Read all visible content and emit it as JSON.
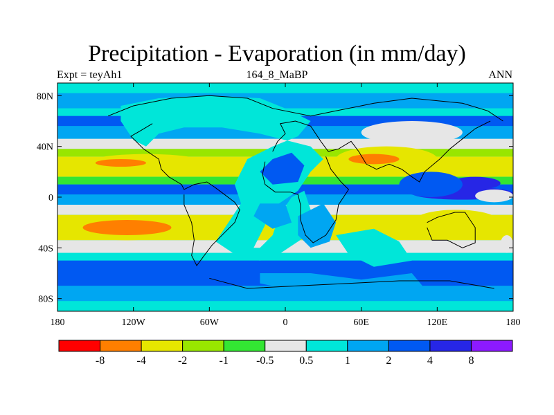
{
  "title": "Precipitation - Evaporation (in mm/day)",
  "subtitle_left": "Expt = teyAh1",
  "subtitle_center": "164_8_MaBP",
  "subtitle_right": "ANN",
  "map": {
    "lon_range": [
      -180,
      180
    ],
    "lat_range": [
      -90,
      90
    ],
    "lat_ticks": [
      {
        "value": 80,
        "label": "80N"
      },
      {
        "value": 40,
        "label": "40N"
      },
      {
        "value": 0,
        "label": "0"
      },
      {
        "value": -40,
        "label": "40S"
      },
      {
        "value": -80,
        "label": "80S"
      }
    ],
    "lon_ticks": [
      {
        "value": -180,
        "label": "180"
      },
      {
        "value": -120,
        "label": "120W"
      },
      {
        "value": -60,
        "label": "60W"
      },
      {
        "value": 0,
        "label": "0"
      },
      {
        "value": 60,
        "label": "60E"
      },
      {
        "value": 120,
        "label": "120E"
      },
      {
        "value": 180,
        "label": "180"
      }
    ],
    "bands": [
      {
        "from": 90,
        "to": 82,
        "cls": 6
      },
      {
        "from": 82,
        "to": 70,
        "cls": 7
      },
      {
        "from": 70,
        "to": 64,
        "cls": 6
      },
      {
        "from": 64,
        "to": 56,
        "cls": 8
      },
      {
        "from": 56,
        "to": 46,
        "cls": 7
      },
      {
        "from": 46,
        "to": 38,
        "cls": 5
      },
      {
        "from": 38,
        "to": 32,
        "cls": 3
      },
      {
        "from": 32,
        "to": 16,
        "cls": 2
      },
      {
        "from": 16,
        "to": 10,
        "cls": 4
      },
      {
        "from": 10,
        "to": 2,
        "cls": 8
      },
      {
        "from": 2,
        "to": -6,
        "cls": 7
      },
      {
        "from": -6,
        "to": -14,
        "cls": 5
      },
      {
        "from": -14,
        "to": -34,
        "cls": 2
      },
      {
        "from": -34,
        "to": -44,
        "cls": 5
      },
      {
        "from": -44,
        "to": -50,
        "cls": 6
      },
      {
        "from": -50,
        "to": -70,
        "cls": 8
      },
      {
        "from": -70,
        "to": -82,
        "cls": 7
      },
      {
        "from": -82,
        "to": -90,
        "cls": 6
      }
    ],
    "patches": [
      {
        "lon": [
          -160,
          -60
        ],
        "lat": [
          34,
          18
        ],
        "cls": 2
      },
      {
        "lon": [
          -150,
          -110
        ],
        "lat": [
          30,
          24
        ],
        "cls": 1
      },
      {
        "lon": [
          -170,
          -80
        ],
        "lat": [
          -14,
          -34
        ],
        "cls": 2
      },
      {
        "lon": [
          -160,
          -90
        ],
        "lat": [
          -18,
          -30
        ],
        "cls": 1
      },
      {
        "lon": [
          130,
          170
        ],
        "lat": [
          16,
          6
        ],
        "cls": 9
      },
      {
        "lon": [
          100,
          180
        ],
        "lat": [
          8,
          -2
        ],
        "cls": 9
      },
      {
        "lon": [
          150,
          180
        ],
        "lat": [
          6,
          -4
        ],
        "cls": 5
      },
      {
        "lon": [
          100,
          170
        ],
        "lat": [
          -10,
          -30
        ],
        "cls": 2
      },
      {
        "lon": [
          170,
          180
        ],
        "lat": [
          -30,
          -44
        ],
        "cls": 5
      },
      {
        "lon": [
          40,
          120
        ],
        "lat": [
          40,
          20
        ],
        "cls": 2
      },
      {
        "lon": [
          50,
          90
        ],
        "lat": [
          34,
          26
        ],
        "cls": 1
      },
      {
        "lon": [
          60,
          140
        ],
        "lat": [
          60,
          42
        ],
        "cls": 5
      },
      {
        "lon": [
          90,
          140
        ],
        "lat": [
          20,
          0
        ],
        "cls": 8
      }
    ],
    "land": [
      {
        "poly": [
          [
            -130,
            72
          ],
          [
            -100,
            78
          ],
          [
            -60,
            80
          ],
          [
            -20,
            78
          ],
          [
            0,
            70
          ],
          [
            20,
            60
          ],
          [
            10,
            48
          ],
          [
            -10,
            40
          ],
          [
            -30,
            30
          ],
          [
            -40,
            10
          ],
          [
            -35,
            -5
          ],
          [
            -45,
            -20
          ],
          [
            -55,
            -35
          ],
          [
            -40,
            -45
          ],
          [
            -25,
            -40
          ],
          [
            -15,
            -20
          ],
          [
            -5,
            -5
          ],
          [
            10,
            5
          ],
          [
            20,
            20
          ],
          [
            30,
            30
          ],
          [
            20,
            40
          ],
          [
            0,
            45
          ],
          [
            -20,
            50
          ],
          [
            -50,
            55
          ],
          [
            -80,
            55
          ],
          [
            -100,
            50
          ],
          [
            -110,
            40
          ],
          [
            -120,
            45
          ],
          [
            -130,
            60
          ]
        ],
        "cls": 6
      },
      {
        "poly": [
          [
            -40,
            -40
          ],
          [
            -20,
            -40
          ],
          [
            -10,
            -30
          ],
          [
            -5,
            -15
          ],
          [
            5,
            0
          ],
          [
            15,
            5
          ],
          [
            20,
            -10
          ],
          [
            25,
            -25
          ],
          [
            10,
            -35
          ],
          [
            -5,
            -45
          ],
          [
            -20,
            -50
          ],
          [
            -35,
            -48
          ]
        ],
        "cls": 6
      },
      {
        "poly": [
          [
            10,
            -15
          ],
          [
            30,
            -5
          ],
          [
            40,
            -20
          ],
          [
            35,
            -35
          ],
          [
            20,
            -40
          ],
          [
            10,
            -30
          ]
        ],
        "cls": 7
      },
      {
        "poly": [
          [
            40,
            -30
          ],
          [
            70,
            -25
          ],
          [
            90,
            -35
          ],
          [
            100,
            -50
          ],
          [
            70,
            -55
          ],
          [
            50,
            -45
          ]
        ],
        "cls": 6
      },
      {
        "poly": [
          [
            -20,
            -60
          ],
          [
            20,
            -60
          ],
          [
            60,
            -65
          ],
          [
            100,
            -60
          ],
          [
            110,
            -72
          ],
          [
            40,
            -75
          ],
          [
            0,
            -72
          ],
          [
            -20,
            -68
          ]
        ],
        "cls": 7
      },
      {
        "poly": [
          [
            -10,
            10
          ],
          [
            10,
            12
          ],
          [
            15,
            25
          ],
          [
            5,
            35
          ],
          [
            -10,
            30
          ],
          [
            -20,
            20
          ]
        ],
        "cls": 8
      },
      {
        "poly": [
          [
            -20,
            -5
          ],
          [
            0,
            -5
          ],
          [
            5,
            -20
          ],
          [
            -10,
            -25
          ],
          [
            -25,
            -15
          ]
        ],
        "cls": 7
      }
    ],
    "coastlines": [
      [
        [
          -140,
          64
        ],
        [
          -120,
          72
        ],
        [
          -90,
          78
        ],
        [
          -60,
          80
        ],
        [
          -30,
          78
        ],
        [
          -10,
          70
        ],
        [
          20,
          64
        ],
        [
          40,
          68
        ],
        [
          70,
          74
        ],
        [
          100,
          78
        ],
        [
          140,
          74
        ],
        [
          160,
          68
        ],
        [
          172,
          60
        ]
      ],
      [
        [
          -105,
          58
        ],
        [
          -115,
          52
        ],
        [
          -122,
          48
        ],
        [
          -112,
          38
        ],
        [
          -100,
          30
        ],
        [
          -98,
          22
        ],
        [
          -92,
          16
        ],
        [
          -82,
          10
        ],
        [
          -80,
          6
        ],
        [
          -72,
          10
        ],
        [
          -62,
          12
        ],
        [
          -56,
          8
        ],
        [
          -48,
          2
        ],
        [
          -40,
          -4
        ],
        [
          -36,
          -10
        ],
        [
          -40,
          -20
        ],
        [
          -48,
          -28
        ],
        [
          -58,
          -38
        ],
        [
          -64,
          -46
        ],
        [
          -70,
          -54
        ],
        [
          -74,
          -46
        ],
        [
          -72,
          -34
        ],
        [
          -74,
          -20
        ],
        [
          -80,
          -6
        ],
        [
          -80,
          2
        ]
      ],
      [
        [
          -10,
          36
        ],
        [
          -6,
          44
        ],
        [
          0,
          50
        ],
        [
          -4,
          58
        ],
        [
          8,
          60
        ],
        [
          20,
          56
        ],
        [
          28,
          44
        ],
        [
          34,
          36
        ],
        [
          42,
          38
        ],
        [
          52,
          44
        ],
        [
          58,
          36
        ],
        [
          64,
          26
        ],
        [
          72,
          22
        ],
        [
          82,
          26
        ],
        [
          92,
          22
        ],
        [
          100,
          16
        ],
        [
          106,
          12
        ],
        [
          110,
          20
        ],
        [
          122,
          30
        ],
        [
          130,
          38
        ],
        [
          140,
          46
        ],
        [
          150,
          54
        ],
        [
          162,
          60
        ]
      ],
      [
        [
          -16,
          28
        ],
        [
          -18,
          18
        ],
        [
          -16,
          10
        ],
        [
          -8,
          4
        ],
        [
          4,
          4
        ],
        [
          10,
          2
        ],
        [
          12,
          -6
        ],
        [
          12,
          -18
        ],
        [
          16,
          -30
        ],
        [
          22,
          -36
        ],
        [
          32,
          -30
        ],
        [
          40,
          -18
        ],
        [
          42,
          -6
        ],
        [
          50,
          6
        ],
        [
          44,
          12
        ],
        [
          36,
          22
        ],
        [
          32,
          32
        ]
      ],
      [
        [
          112,
          -20
        ],
        [
          120,
          -16
        ],
        [
          134,
          -12
        ],
        [
          142,
          -12
        ],
        [
          150,
          -24
        ],
        [
          150,
          -36
        ],
        [
          140,
          -40
        ],
        [
          128,
          -34
        ],
        [
          116,
          -34
        ],
        [
          112,
          -24
        ]
      ],
      [
        [
          -60,
          -64
        ],
        [
          -30,
          -72
        ],
        [
          10,
          -70
        ],
        [
          50,
          -68
        ],
        [
          90,
          -66
        ],
        [
          130,
          -66
        ],
        [
          165,
          -72
        ]
      ]
    ]
  },
  "colorbar": {
    "colors": [
      "#ff0000",
      "#ff7f00",
      "#e6e600",
      "#99e600",
      "#33e633",
      "#e6e6e6",
      "#00e6d9",
      "#00a6f2",
      "#0059f2",
      "#2626e6",
      "#8c1aff"
    ],
    "map_colors": [
      "#e6e6e6",
      "#ff7f00",
      "#e6e600",
      "#99e600",
      "#33e633",
      "#e6e6e6",
      "#00e6d9",
      "#00a6f2",
      "#0059f2",
      "#2626e6",
      "#8c1aff"
    ],
    "labels": [
      "-8",
      "-4",
      "-2",
      "-1",
      "-0.5",
      "0.5",
      "1",
      "2",
      "4",
      "8"
    ]
  }
}
